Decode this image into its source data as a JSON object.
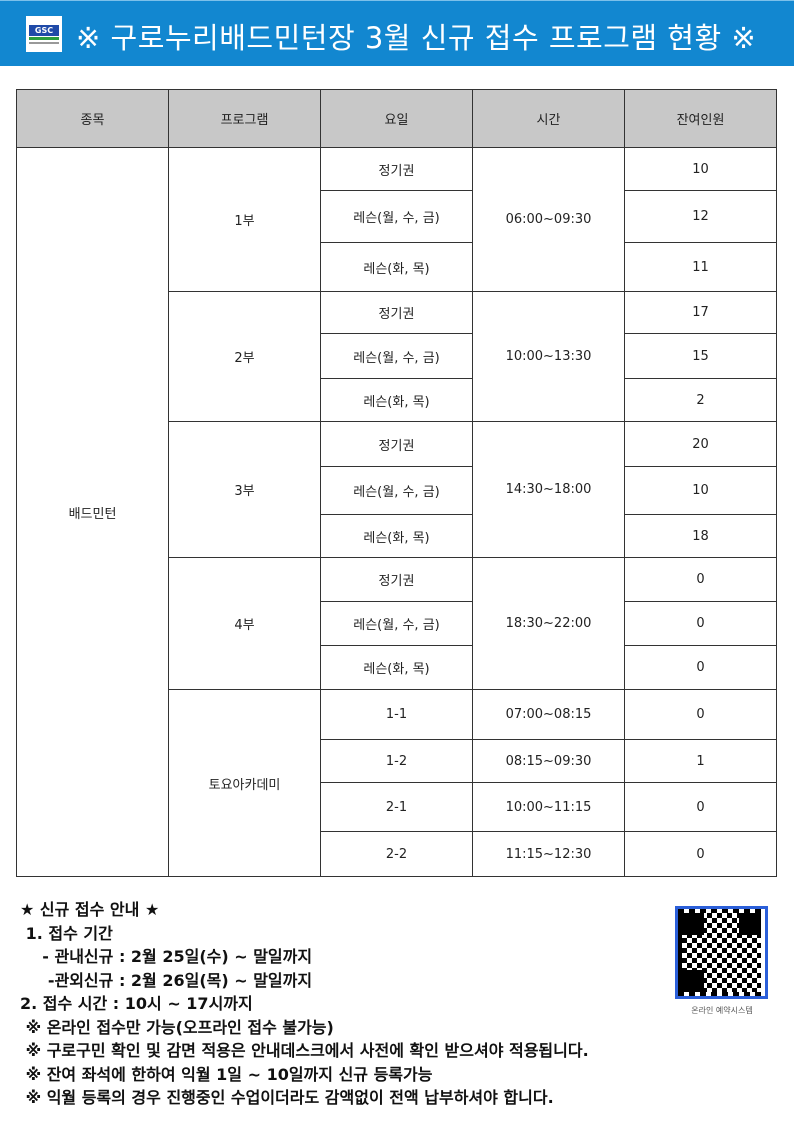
{
  "header": {
    "title": "※ 구로누리배드민턴장 3월 신규 접수 프로그램 현황 ※",
    "logo_text": "GSC"
  },
  "table": {
    "headers": [
      "종목",
      "프로그램",
      "요일",
      "시간",
      "잔여인원"
    ],
    "sport": "배드민턴",
    "groups": [
      {
        "program": "1부",
        "time": "06:00~09:30",
        "rows": [
          {
            "day": "정기권",
            "remaining": "10"
          },
          {
            "day": "레슨(월, 수, 금)",
            "remaining": "12"
          },
          {
            "day": "레슨(화, 목)",
            "remaining": "11"
          }
        ]
      },
      {
        "program": "2부",
        "time": "10:00~13:30",
        "rows": [
          {
            "day": "정기권",
            "remaining": "17"
          },
          {
            "day": "레슨(월, 수, 금)",
            "remaining": "15"
          },
          {
            "day": "레슨(화, 목)",
            "remaining": "2"
          }
        ]
      },
      {
        "program": "3부",
        "time": "14:30~18:00",
        "rows": [
          {
            "day": "정기권",
            "remaining": "20"
          },
          {
            "day": "레슨(월, 수, 금)",
            "remaining": "10"
          },
          {
            "day": "레슨(화, 목)",
            "remaining": "18"
          }
        ]
      },
      {
        "program": "4부",
        "time": "18:30~22:00",
        "rows": [
          {
            "day": "정기권",
            "remaining": "0"
          },
          {
            "day": "레슨(월, 수, 금)",
            "remaining": "0"
          },
          {
            "day": "레슨(화, 목)",
            "remaining": "0"
          }
        ]
      }
    ],
    "academy": {
      "program": "토요아카데미",
      "rows": [
        {
          "day": "1-1",
          "time": "07:00~08:15",
          "remaining": "0"
        },
        {
          "day": "1-2",
          "time": "08:15~09:30",
          "remaining": "1"
        },
        {
          "day": "2-1",
          "time": "10:00~11:15",
          "remaining": "0"
        },
        {
          "day": "2-2",
          "time": "11:15~12:30",
          "remaining": "0"
        }
      ]
    }
  },
  "notes": [
    "★ 신규 접수 안내 ★",
    " 1. 접수 기간",
    "    - 관내신규 : 2월 25일(수) ~ 말일까지",
    "     -관외신규 : 2월 26일(목) ~ 말일까지",
    "2. 접수 시간 : 10시 ~ 17시까지",
    " ※ 온라인 접수만 가능(오프라인 접수 불가능)",
    " ※ 구로구민 확인 및 감면 적용은 안내데스크에서 사전에 확인 받으셔야 적용됩니다.",
    " ※ 잔여 좌석에 한하여 익월 1일 ~ 10일까지 신규 등록가능",
    " ※ 익월 등록의 경우 진행중인 수업이더라도 감액없이 전액 납부하셔야 합니다."
  ],
  "qr": {
    "caption": "온라인 예약시스템"
  },
  "colors": {
    "banner": "#1287d0",
    "header_cell": "#c8c8c8",
    "qr_border": "#2b5fd9"
  }
}
